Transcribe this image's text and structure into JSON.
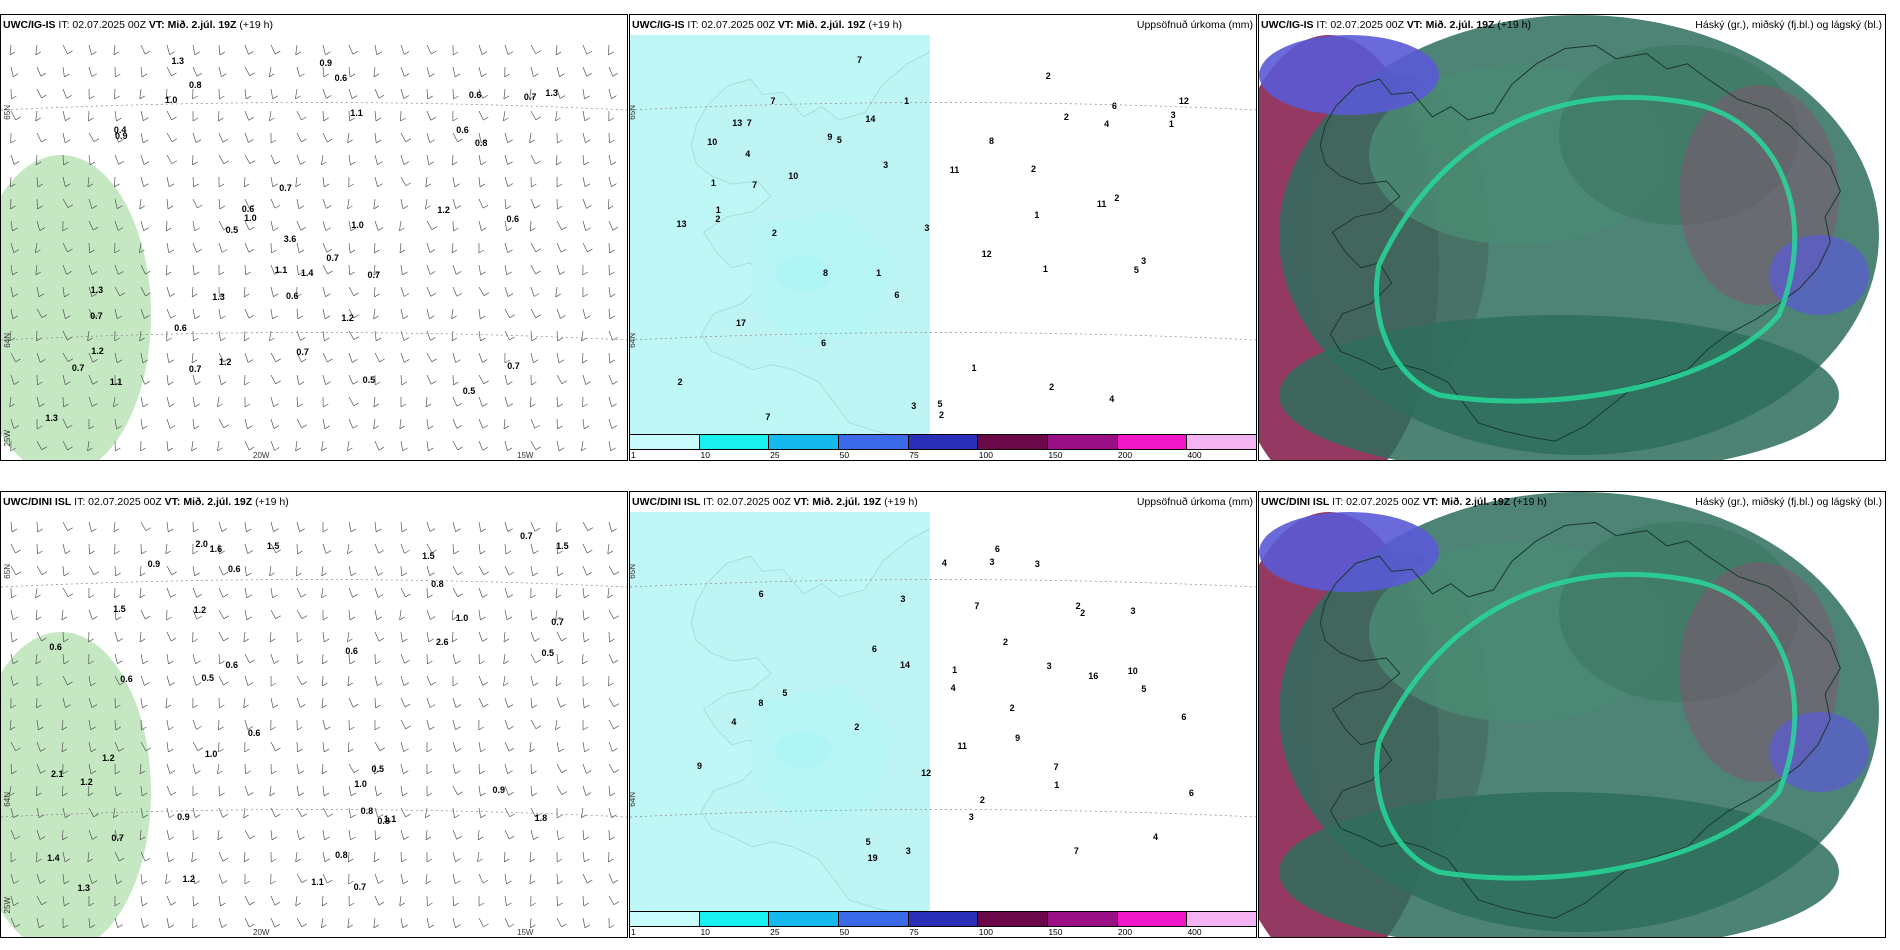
{
  "panels": [
    {
      "id": "top-left",
      "header": {
        "model": "UWC/IG-IS",
        "it": "IT: 02.07.2025 00Z",
        "vt_label": "VT:",
        "vt_value": "Mið. 2.júl. 19Z",
        "lead": "(+19 h)"
      },
      "right_title": "",
      "axis": {
        "lat_top": "65N",
        "lat_mid": "64N",
        "lat_low": "25W",
        "lon_a": "20W",
        "lon_b": "15W"
      },
      "values": [
        "1.0",
        "0.6",
        "1.0",
        "0.5",
        "0.7",
        "0.9",
        "1.0",
        "0.7",
        "1.3",
        "0.7",
        "0.6",
        "0.8",
        "0.4",
        "1.3",
        "1.2",
        "0.6",
        "1.1",
        "0.8",
        "0.9",
        "0.5",
        "1.3",
        "0.6",
        "1.2",
        "0.7",
        "1.1",
        "0.7",
        "0.6",
        "0.7",
        "0.5",
        "0.6",
        "0.7",
        "0.6",
        "0.7",
        "1.3",
        "1.2",
        "1.1",
        "1.4",
        "1.3",
        "3.6",
        "0.7",
        "1.2"
      ]
    },
    {
      "id": "top-middle",
      "header": {
        "model": "UWC/IG-IS",
        "it": "IT: 02.07.2025 00Z",
        "vt_label": "VT:",
        "vt_value": "Mið. 2.júl. 19Z",
        "lead": "(+19 h)"
      },
      "right_title": "Uppsöfnuð úrkoma (mm)",
      "axis": {
        "lat_top": "65N",
        "lat_mid": "64N"
      },
      "values": [
        "2",
        "3",
        "2",
        "5",
        "1",
        "10",
        "8",
        "7",
        "6",
        "7",
        "2",
        "1",
        "1",
        "1",
        "4",
        "2",
        "7",
        "5",
        "2",
        "4",
        "11",
        "9",
        "14",
        "12",
        "13",
        "13",
        "17",
        "7",
        "3",
        "12",
        "10",
        "1",
        "2",
        "2",
        "3",
        "6",
        "11",
        "5",
        "8",
        "2",
        "1",
        "1",
        "1",
        "2",
        "3",
        "4",
        "6",
        "3",
        "7"
      ]
    },
    {
      "id": "top-right",
      "header": {
        "model": "UWC/IG-IS",
        "it": "IT: 02.07.2025 00Z",
        "vt_label": "VT:",
        "vt_value": "Mið. 2.júl. 19Z",
        "lead": "(+19 h)"
      },
      "right_title": "Háský (gr.), miðský (fj.bl.) og lágský (bl.)"
    },
    {
      "id": "bottom-left",
      "header": {
        "model": "UWC/DINI ISL",
        "it": "IT: 02.07.2025 00Z",
        "vt_label": "VT:",
        "vt_value": "Mið. 2.júl. 19Z",
        "lead": "(+19 h)"
      },
      "right_title": "",
      "axis": {
        "lat_top": "65N",
        "lat_mid": "64N",
        "lat_low": "25W",
        "lon_a": "20W",
        "lon_b": "15W"
      },
      "values": [
        "1.2",
        "0.7",
        "0.9",
        "0.7",
        "0.5",
        "0.6",
        "0.8",
        "0.7",
        "0.5",
        "0.6",
        "1.5",
        "0.5",
        "1.3",
        "1.6",
        "0.8",
        "1.5",
        "1.0",
        "1.2",
        "1.4",
        "2.0",
        "1.2",
        "0.7",
        "1.0",
        "2.1",
        "1.5",
        "0.8",
        "0.9",
        "0.6",
        "1.1",
        "0.6",
        "1.2",
        "1.0",
        "0.9",
        "2.6",
        "1.5",
        "0.6",
        "0.8",
        "1.1",
        "1.8",
        "0.6"
      ]
    },
    {
      "id": "bottom-middle",
      "header": {
        "model": "UWC/DINI ISL",
        "it": "IT: 02.07.2025 00Z",
        "vt_label": "VT:",
        "vt_value": "Mið. 2.júl. 19Z",
        "lead": "(+19 h)"
      },
      "right_title": "Uppsöfnuð úrkoma (mm)",
      "axis": {
        "lat_top": "65N",
        "lat_mid": "64N"
      },
      "values": [
        "2",
        "8",
        "3",
        "6",
        "7",
        "12",
        "9",
        "10",
        "7",
        "16",
        "6",
        "6",
        "19",
        "14",
        "11",
        "3",
        "5",
        "2",
        "6",
        "4",
        "6",
        "9",
        "5",
        "4",
        "3",
        "2",
        "1",
        "3",
        "3",
        "4",
        "2",
        "5",
        "3",
        "2",
        "4",
        "3",
        "2",
        "1",
        "7"
      ]
    },
    {
      "id": "bottom-right",
      "header": {
        "model": "UWC/DINI ISL",
        "it": "IT: 02.07.2025 00Z",
        "vt_label": "VT:",
        "vt_value": "Mið. 2.júl. 19Z",
        "lead": "(+19 h)"
      },
      "right_title": "Háský (gr.), miðský (fj.bl.) og lágský (bl.)"
    }
  ],
  "colorbar": {
    "ticks": [
      "1",
      "10",
      "25",
      "50",
      "75",
      "100",
      "150",
      "200",
      "400"
    ],
    "colors": [
      "#c8fbfb",
      "#19f0f0",
      "#15b9ee",
      "#3a6ae8",
      "#2a2fb8",
      "#6a0848",
      "#9a0e86",
      "#f018c8",
      "#f4b4f2"
    ]
  },
  "colors": {
    "land": "#f6e8da",
    "precip_light": "#b8f6f6",
    "precip_mid": "#3de7e7",
    "green_light": "#b7e2b3",
    "green_mid": "#57b45c",
    "green_dark": "#0e5a1e",
    "cloud_high": "#2f6e5e",
    "cloud_mid": "#8e2e58",
    "cloud_low": "#5a5ad6",
    "cloud_edge": "#27d89a"
  }
}
